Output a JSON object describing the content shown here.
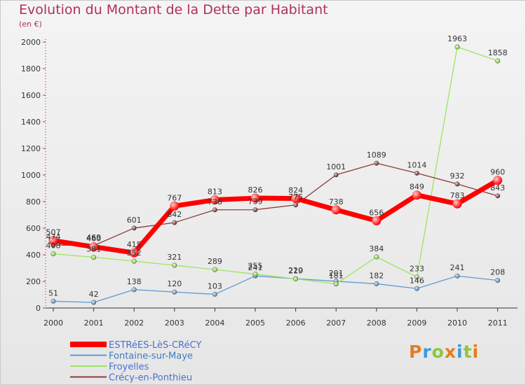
{
  "title": "Evolution du Montant de la Dette par Habitant",
  "subtitle": "(en €)",
  "logo": {
    "text": "Proxiti",
    "colors": [
      "#e87b1e",
      "#3a9ad9",
      "#8cc63f",
      "#e87b1e",
      "#3a9ad9",
      "#8cc63f",
      "#e87b1e"
    ]
  },
  "chart_data": {
    "type": "line",
    "x": [
      "2000",
      "2001",
      "2002",
      "2003",
      "2004",
      "2005",
      "2006",
      "2007",
      "2008",
      "2009",
      "2010",
      "2011"
    ],
    "ylim": [
      0,
      2000
    ],
    "yticks": [
      "0",
      "200",
      "400",
      "600",
      "800",
      "1000",
      "1200",
      "1400",
      "1600",
      "1800",
      "2000"
    ],
    "grid": false,
    "legend_position": "bottom-left",
    "series": [
      {
        "name": "ESTRéES-LèS-CRéCY",
        "color": "#ff0000",
        "values": [
          507,
          460,
          415,
          767,
          813,
          826,
          824,
          738,
          656,
          849,
          783,
          960
        ],
        "labels": [
          "507",
          "460",
          "415",
          "767",
          "813",
          "826",
          "824",
          "738",
          "656",
          "849",
          "783",
          "960"
        ]
      },
      {
        "name": "Fontaine-sur-Maye",
        "color": "#5f9bd1",
        "values": [
          51,
          42,
          138,
          120,
          103,
          241,
          220,
          201,
          182,
          146,
          241,
          208
        ],
        "labels": [
          "51",
          "42",
          "138",
          "120",
          "103",
          "241",
          "220",
          "201",
          "182",
          "146",
          "241",
          "208"
        ]
      },
      {
        "name": "Froyelles",
        "color": "#9de55b",
        "values": [
          408,
          381,
          352,
          321,
          289,
          255,
          219,
          181,
          384,
          233,
          1963,
          1858
        ],
        "labels": [
          "408",
          "381",
          "352",
          "321",
          "289",
          "255",
          "219",
          "181",
          "384",
          "233",
          "1963",
          "1858"
        ]
      },
      {
        "name": "Crécy-en-Ponthieu",
        "color": "#8b3a3a",
        "values": [
          474,
          469,
          601,
          642,
          738,
          739,
          775,
          1001,
          1089,
          1014,
          932,
          843
        ],
        "labels": [
          "474",
          "469",
          "601",
          "642",
          "738",
          "739",
          "775",
          "1001",
          "1089",
          "1014",
          "932",
          "843"
        ]
      }
    ]
  }
}
